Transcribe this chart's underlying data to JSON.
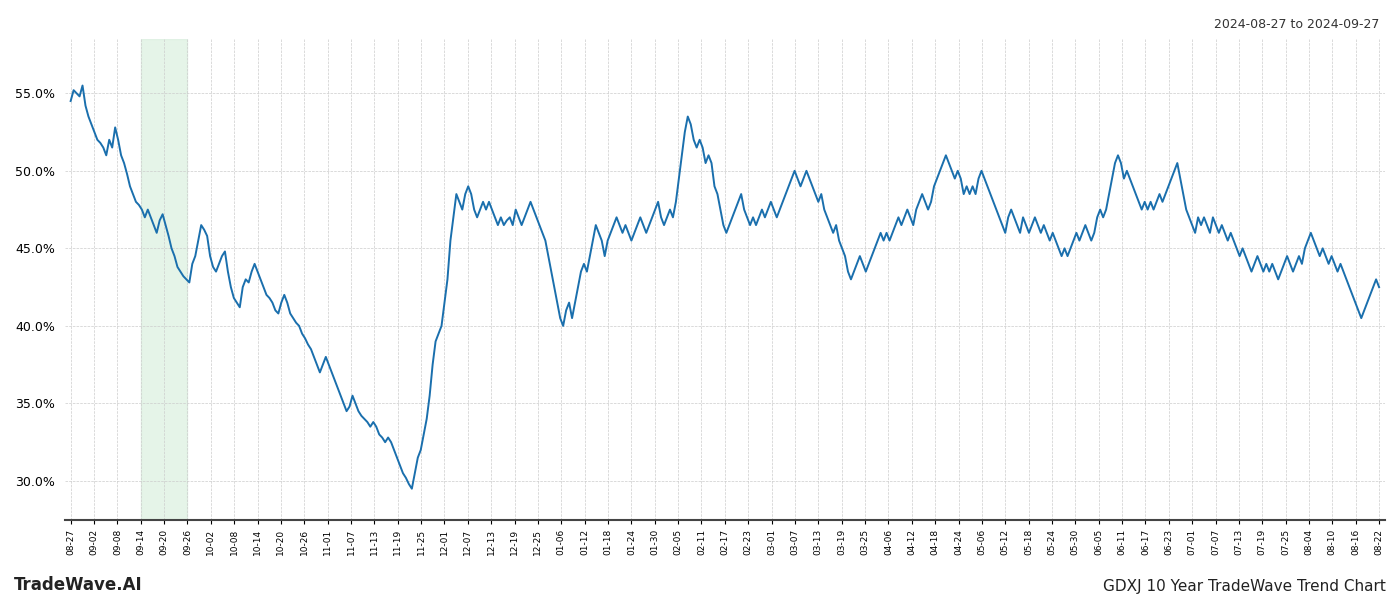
{
  "title_right": "2024-08-27 to 2024-09-27",
  "footer_left": "TradeWave.AI",
  "footer_right": "GDXJ 10 Year TradeWave Trend Chart",
  "line_color": "#1a6fad",
  "line_width": 1.4,
  "shaded_region_color": "#d4edda",
  "shaded_region_alpha": 0.6,
  "background_color": "#ffffff",
  "grid_color": "#cccccc",
  "ylim": [
    27.5,
    58.5
  ],
  "yticks": [
    30.0,
    35.0,
    40.0,
    45.0,
    50.0,
    55.0
  ],
  "x_labels": [
    "08-27",
    "09-02",
    "09-08",
    "09-14",
    "09-20",
    "09-26",
    "10-02",
    "10-08",
    "10-14",
    "10-20",
    "10-26",
    "11-01",
    "11-07",
    "11-13",
    "11-19",
    "11-25",
    "12-01",
    "12-07",
    "12-13",
    "12-19",
    "12-25",
    "01-06",
    "01-12",
    "01-18",
    "01-24",
    "01-30",
    "02-05",
    "02-11",
    "02-17",
    "02-23",
    "03-01",
    "03-07",
    "03-13",
    "03-19",
    "03-25",
    "04-06",
    "04-12",
    "04-18",
    "04-24",
    "05-06",
    "05-12",
    "05-18",
    "05-24",
    "05-30",
    "06-05",
    "06-11",
    "06-17",
    "06-23",
    "07-01",
    "07-07",
    "07-13",
    "07-19",
    "07-25",
    "08-04",
    "08-10",
    "08-16",
    "08-22"
  ],
  "shaded_start_label": "09-14",
  "shaded_end_label": "09-26",
  "y_values": [
    54.5,
    55.2,
    55.0,
    54.8,
    55.5,
    54.2,
    53.5,
    53.0,
    52.5,
    52.0,
    51.8,
    51.5,
    51.0,
    52.0,
    51.5,
    52.8,
    52.0,
    51.0,
    50.5,
    49.8,
    49.0,
    48.5,
    48.0,
    47.8,
    47.5,
    47.0,
    47.5,
    47.0,
    46.5,
    46.0,
    46.8,
    47.2,
    46.5,
    45.8,
    45.0,
    44.5,
    43.8,
    43.5,
    43.2,
    43.0,
    42.8,
    44.0,
    44.5,
    45.5,
    46.5,
    46.2,
    45.8,
    44.5,
    43.8,
    43.5,
    44.0,
    44.5,
    44.8,
    43.5,
    42.5,
    41.8,
    41.5,
    41.2,
    42.5,
    43.0,
    42.8,
    43.5,
    44.0,
    43.5,
    43.0,
    42.5,
    42.0,
    41.8,
    41.5,
    41.0,
    40.8,
    41.5,
    42.0,
    41.5,
    40.8,
    40.5,
    40.2,
    40.0,
    39.5,
    39.2,
    38.8,
    38.5,
    38.0,
    37.5,
    37.0,
    37.5,
    38.0,
    37.5,
    37.0,
    36.5,
    36.0,
    35.5,
    35.0,
    34.5,
    34.8,
    35.5,
    35.0,
    34.5,
    34.2,
    34.0,
    33.8,
    33.5,
    33.8,
    33.5,
    33.0,
    32.8,
    32.5,
    32.8,
    32.5,
    32.0,
    31.5,
    31.0,
    30.5,
    30.2,
    29.8,
    29.5,
    30.5,
    31.5,
    32.0,
    33.0,
    34.0,
    35.5,
    37.5,
    39.0,
    39.5,
    40.0,
    41.5,
    43.0,
    45.5,
    47.0,
    48.5,
    48.0,
    47.5,
    48.5,
    49.0,
    48.5,
    47.5,
    47.0,
    47.5,
    48.0,
    47.5,
    48.0,
    47.5,
    47.0,
    46.5,
    47.0,
    46.5,
    46.8,
    47.0,
    46.5,
    47.5,
    47.0,
    46.5,
    47.0,
    47.5,
    48.0,
    47.5,
    47.0,
    46.5,
    46.0,
    45.5,
    44.5,
    43.5,
    42.5,
    41.5,
    40.5,
    40.0,
    41.0,
    41.5,
    40.5,
    41.5,
    42.5,
    43.5,
    44.0,
    43.5,
    44.5,
    45.5,
    46.5,
    46.0,
    45.5,
    44.5,
    45.5,
    46.0,
    46.5,
    47.0,
    46.5,
    46.0,
    46.5,
    46.0,
    45.5,
    46.0,
    46.5,
    47.0,
    46.5,
    46.0,
    46.5,
    47.0,
    47.5,
    48.0,
    47.0,
    46.5,
    47.0,
    47.5,
    47.0,
    48.0,
    49.5,
    51.0,
    52.5,
    53.5,
    53.0,
    52.0,
    51.5,
    52.0,
    51.5,
    50.5,
    51.0,
    50.5,
    49.0,
    48.5,
    47.5,
    46.5,
    46.0,
    46.5,
    47.0,
    47.5,
    48.0,
    48.5,
    47.5,
    47.0,
    46.5,
    47.0,
    46.5,
    47.0,
    47.5,
    47.0,
    47.5,
    48.0,
    47.5,
    47.0,
    47.5,
    48.0,
    48.5,
    49.0,
    49.5,
    50.0,
    49.5,
    49.0,
    49.5,
    50.0,
    49.5,
    49.0,
    48.5,
    48.0,
    48.5,
    47.5,
    47.0,
    46.5,
    46.0,
    46.5,
    45.5,
    45.0,
    44.5,
    43.5,
    43.0,
    43.5,
    44.0,
    44.5,
    44.0,
    43.5,
    44.0,
    44.5,
    45.0,
    45.5,
    46.0,
    45.5,
    46.0,
    45.5,
    46.0,
    46.5,
    47.0,
    46.5,
    47.0,
    47.5,
    47.0,
    46.5,
    47.5,
    48.0,
    48.5,
    48.0,
    47.5,
    48.0,
    49.0,
    49.5,
    50.0,
    50.5,
    51.0,
    50.5,
    50.0,
    49.5,
    50.0,
    49.5,
    48.5,
    49.0,
    48.5,
    49.0,
    48.5,
    49.5,
    50.0,
    49.5,
    49.0,
    48.5,
    48.0,
    47.5,
    47.0,
    46.5,
    46.0,
    47.0,
    47.5,
    47.0,
    46.5,
    46.0,
    47.0,
    46.5,
    46.0,
    46.5,
    47.0,
    46.5,
    46.0,
    46.5,
    46.0,
    45.5,
    46.0,
    45.5,
    45.0,
    44.5,
    45.0,
    44.5,
    45.0,
    45.5,
    46.0,
    45.5,
    46.0,
    46.5,
    46.0,
    45.5,
    46.0,
    47.0,
    47.5,
    47.0,
    47.5,
    48.5,
    49.5,
    50.5,
    51.0,
    50.5,
    49.5,
    50.0,
    49.5,
    49.0,
    48.5,
    48.0,
    47.5,
    48.0,
    47.5,
    48.0,
    47.5,
    48.0,
    48.5,
    48.0,
    48.5,
    49.0,
    49.5,
    50.0,
    50.5,
    49.5,
    48.5,
    47.5,
    47.0,
    46.5,
    46.0,
    47.0,
    46.5,
    47.0,
    46.5,
    46.0,
    47.0,
    46.5,
    46.0,
    46.5,
    46.0,
    45.5,
    46.0,
    45.5,
    45.0,
    44.5,
    45.0,
    44.5,
    44.0,
    43.5,
    44.0,
    44.5,
    44.0,
    43.5,
    44.0,
    43.5,
    44.0,
    43.5,
    43.0,
    43.5,
    44.0,
    44.5,
    44.0,
    43.5,
    44.0,
    44.5,
    44.0,
    45.0,
    45.5,
    46.0,
    45.5,
    45.0,
    44.5,
    45.0,
    44.5,
    44.0,
    44.5,
    44.0,
    43.5,
    44.0,
    43.5,
    43.0,
    42.5,
    42.0,
    41.5,
    41.0,
    40.5,
    41.0,
    41.5,
    42.0,
    42.5,
    43.0,
    42.5
  ]
}
